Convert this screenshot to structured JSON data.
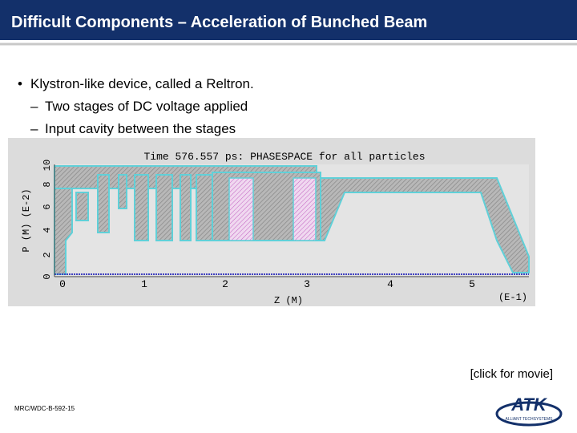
{
  "header": {
    "title": "Difficult Components – Acceleration of Bunched Beam"
  },
  "bullets": [
    {
      "text": "Klystron-like device, called a Reltron.",
      "level": 1
    },
    {
      "text": "Two stages of DC voltage applied",
      "level": 2
    },
    {
      "text": "Input cavity between the stages",
      "level": 2
    }
  ],
  "figure": {
    "title": "Time 576.557 ps:  PHASESPACE for all particles",
    "y_label": "P  (M)  (E-2)",
    "y_ticks": [
      "0",
      "2",
      "4",
      "6",
      "8",
      "10"
    ],
    "x_label": "Z  (M)",
    "x_ticks": [
      "0",
      "1",
      "2",
      "3",
      "4",
      "5"
    ],
    "x_scale": "(E-1)"
  },
  "link": "[click for movie]",
  "footer": "MRC/WDC-B-592-15",
  "logo": {
    "name": "ATK",
    "tagline": "ALLIANT TECHSYSTEMS"
  }
}
